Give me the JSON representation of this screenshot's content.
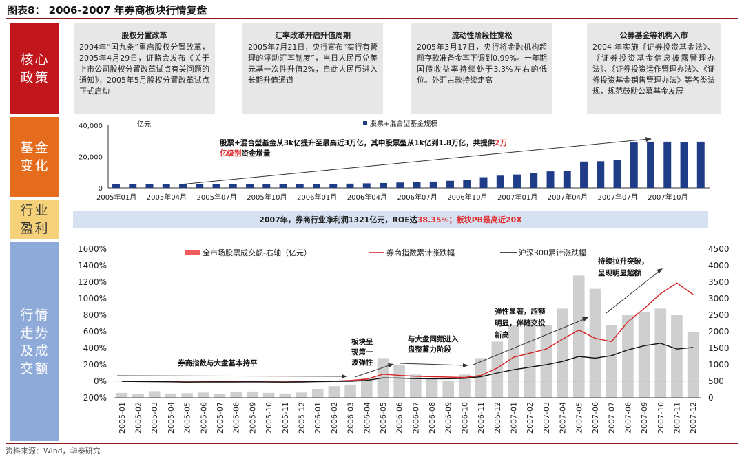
{
  "title": "图表8： 2006-2007 年券商板块行情复盘",
  "source": "资料来源：Wind，华泰研究",
  "labels": {
    "policy": "核心政策",
    "fund": "基金变化",
    "profit": "行业盈利",
    "market": "行情走势及成交额"
  },
  "colors": {
    "policy_label": "#c0161c",
    "fund_label": "#e46c1c",
    "profit_label": "#f5d27a",
    "market_label": "#8eaad8",
    "bar": "#1f3c88",
    "broker_line": "#d21f1f",
    "hs300_line": "#111111",
    "volume_bar": "#cfcfcf"
  },
  "policies": [
    {
      "heading": "股权分置改革",
      "body": "2004年“国九条”重启股权分置改革，2005年4月29日，证监会发布《关于上市公司股权分置改革试点有关问题的通知》，2005年5月股权分置改革试点正式启动"
    },
    {
      "heading": "汇率改革开启升值周期",
      "body": "2005年7月21日，央行宣布“实行有管理的浮动汇率制度”，当日人民币兑美元基一次性升值2%，自此人民币进入长期升值通道"
    },
    {
      "heading": "流动性阶段性宽松",
      "body": "2005年3月17日，央行将金融机构超额存款准备金率下调到0.99%。十年期国债收益率持续处于3.3%左右的低位。外汇占款持续走高"
    },
    {
      "heading": "公募基金等机构入市",
      "body": "2004 年实施《证券投资基金法》、《证券投资基金信息披露管理办法》、《证券投资运作管理办法》、《证券投资基金销售管理办法》等各类法规，规范鼓励公募基金发展"
    }
  ],
  "banner": {
    "text1": "2007年，券商行业净利润1321亿元，ROE达",
    "red1": "38.35%",
    "text2": "；板块PB最高近20X"
  },
  "chart_data": [
    {
      "type": "bar",
      "unit_label": "亿元",
      "series": [
        {
          "name": "股票+混合型基金规模",
          "values": [
            2400,
            2500,
            2500,
            2550,
            2600,
            2550,
            2500,
            2450,
            2400,
            2400,
            2400,
            2450,
            2500,
            2600,
            2700,
            2900,
            3100,
            3400,
            3700,
            4000,
            4500,
            5200,
            6800,
            7800,
            8500,
            9500,
            10500,
            11000,
            16800,
            17000,
            18000,
            29000,
            29500,
            29500,
            29000,
            29500
          ]
        }
      ],
      "categories": [
        "2005年01月",
        "2005年02月",
        "2005年03月",
        "2005年04月",
        "2005年05月",
        "2005年06月",
        "2005年07月",
        "2005年08月",
        "2005年09月",
        "2005年10月",
        "2005年11月",
        "2005年12月",
        "2006年01月",
        "2006年02月",
        "2006年03月",
        "2006年04月",
        "2006年05月",
        "2006年06月",
        "2006年07月",
        "2006年08月",
        "2006年09月",
        "2006年10月",
        "2006年11月",
        "2006年12月",
        "2007年01月",
        "2007年02月",
        "2007年03月",
        "2007年04月",
        "2007年05月",
        "2007年06月",
        "2007年07月",
        "2007年08月",
        "2007年09月",
        "2007年10月",
        "2007年11月",
        "2007年12月"
      ],
      "x_tick_labels": [
        "2005年01月",
        "2005年04月",
        "2005年07月",
        "2005年10月",
        "2006年01月",
        "2006年04月",
        "2006年07月",
        "2006年10月",
        "2007年01月",
        "2007年04月",
        "2007年07月",
        "2007年10月"
      ],
      "y_tick_labels": [
        "0",
        "20,000",
        "40,000"
      ],
      "ylim": [
        0,
        40000
      ],
      "annotation": {
        "text1": "股票+混合型基金从3k亿提升至最高近3万亿，其中股票型从1k亿到1.8万亿，共提供",
        "red": "2万亿级别",
        "text2": "资金增量"
      },
      "legend": "top-center"
    },
    {
      "type": "line",
      "categories": [
        "2005-01",
        "2005-02",
        "2005-03",
        "2005-04",
        "2005-05",
        "2005-06",
        "2005-07",
        "2005-08",
        "2005-09",
        "2005-10",
        "2005-11",
        "2005-12",
        "2006-01",
        "2006-02",
        "2006-03",
        "2006-04",
        "2006-05",
        "2006-06",
        "2006-07",
        "2006-08",
        "2006-09",
        "2006-10",
        "2006-11",
        "2006-12",
        "2007-01",
        "2007-02",
        "2007-03",
        "2007-04",
        "2007-05",
        "2007-06",
        "2007-07",
        "2007-08",
        "2007-09",
        "2007-10",
        "2007-11",
        "2007-12"
      ],
      "series": [
        {
          "name": "全市场股票成交额-右轴（亿元）",
          "axis": "right",
          "type": "bar",
          "values": [
            150,
            120,
            200,
            130,
            140,
            160,
            120,
            170,
            190,
            150,
            130,
            160,
            250,
            350,
            400,
            600,
            1200,
            1000,
            700,
            600,
            500,
            700,
            1200,
            1700,
            2200,
            2400,
            2200,
            2700,
            3700,
            3300,
            2200,
            2500,
            2600,
            2700,
            2500,
            2000
          ]
        },
        {
          "name": "券商指数累计涨跌幅",
          "axis": "left",
          "values": [
            0,
            -2,
            -3,
            -5,
            -8,
            -6,
            -4,
            -6,
            -4,
            -7,
            -8,
            -5,
            0,
            2,
            10,
            25,
            85,
            70,
            60,
            55,
            50,
            45,
            70,
            160,
            290,
            340,
            390,
            510,
            620,
            520,
            480,
            720,
            880,
            1060,
            1190,
            1050
          ]
        },
        {
          "name": "沪深300累计涨跌幅",
          "axis": "left",
          "values": [
            0,
            -3,
            -5,
            -7,
            -10,
            -9,
            -8,
            -9,
            -7,
            -9,
            -10,
            -8,
            -5,
            -2,
            0,
            10,
            40,
            38,
            32,
            30,
            30,
            35,
            55,
            100,
            140,
            170,
            200,
            240,
            300,
            280,
            310,
            380,
            430,
            460,
            390,
            410
          ]
        }
      ],
      "y_left_ticks": [
        "-200%",
        "0%",
        "200%",
        "400%",
        "600%",
        "800%",
        "1000%",
        "1200%",
        "1400%",
        "1600%"
      ],
      "y_left_lim": [
        -200,
        1600
      ],
      "y_right_ticks": [
        "0",
        "500",
        "1000",
        "1500",
        "2000",
        "2500",
        "3000",
        "3500",
        "4000",
        "4500"
      ],
      "y_right_lim": [
        0,
        4500
      ],
      "annotations": [
        "券商指数与大盘基本持平",
        "板块呈现第一波弹性",
        "与大盘同频进入盘整蓄力阶段",
        "弹性显著，超额明显，伴随交投新高",
        "持续拉升突破，呈现明显超额"
      ],
      "legend": "top"
    }
  ]
}
